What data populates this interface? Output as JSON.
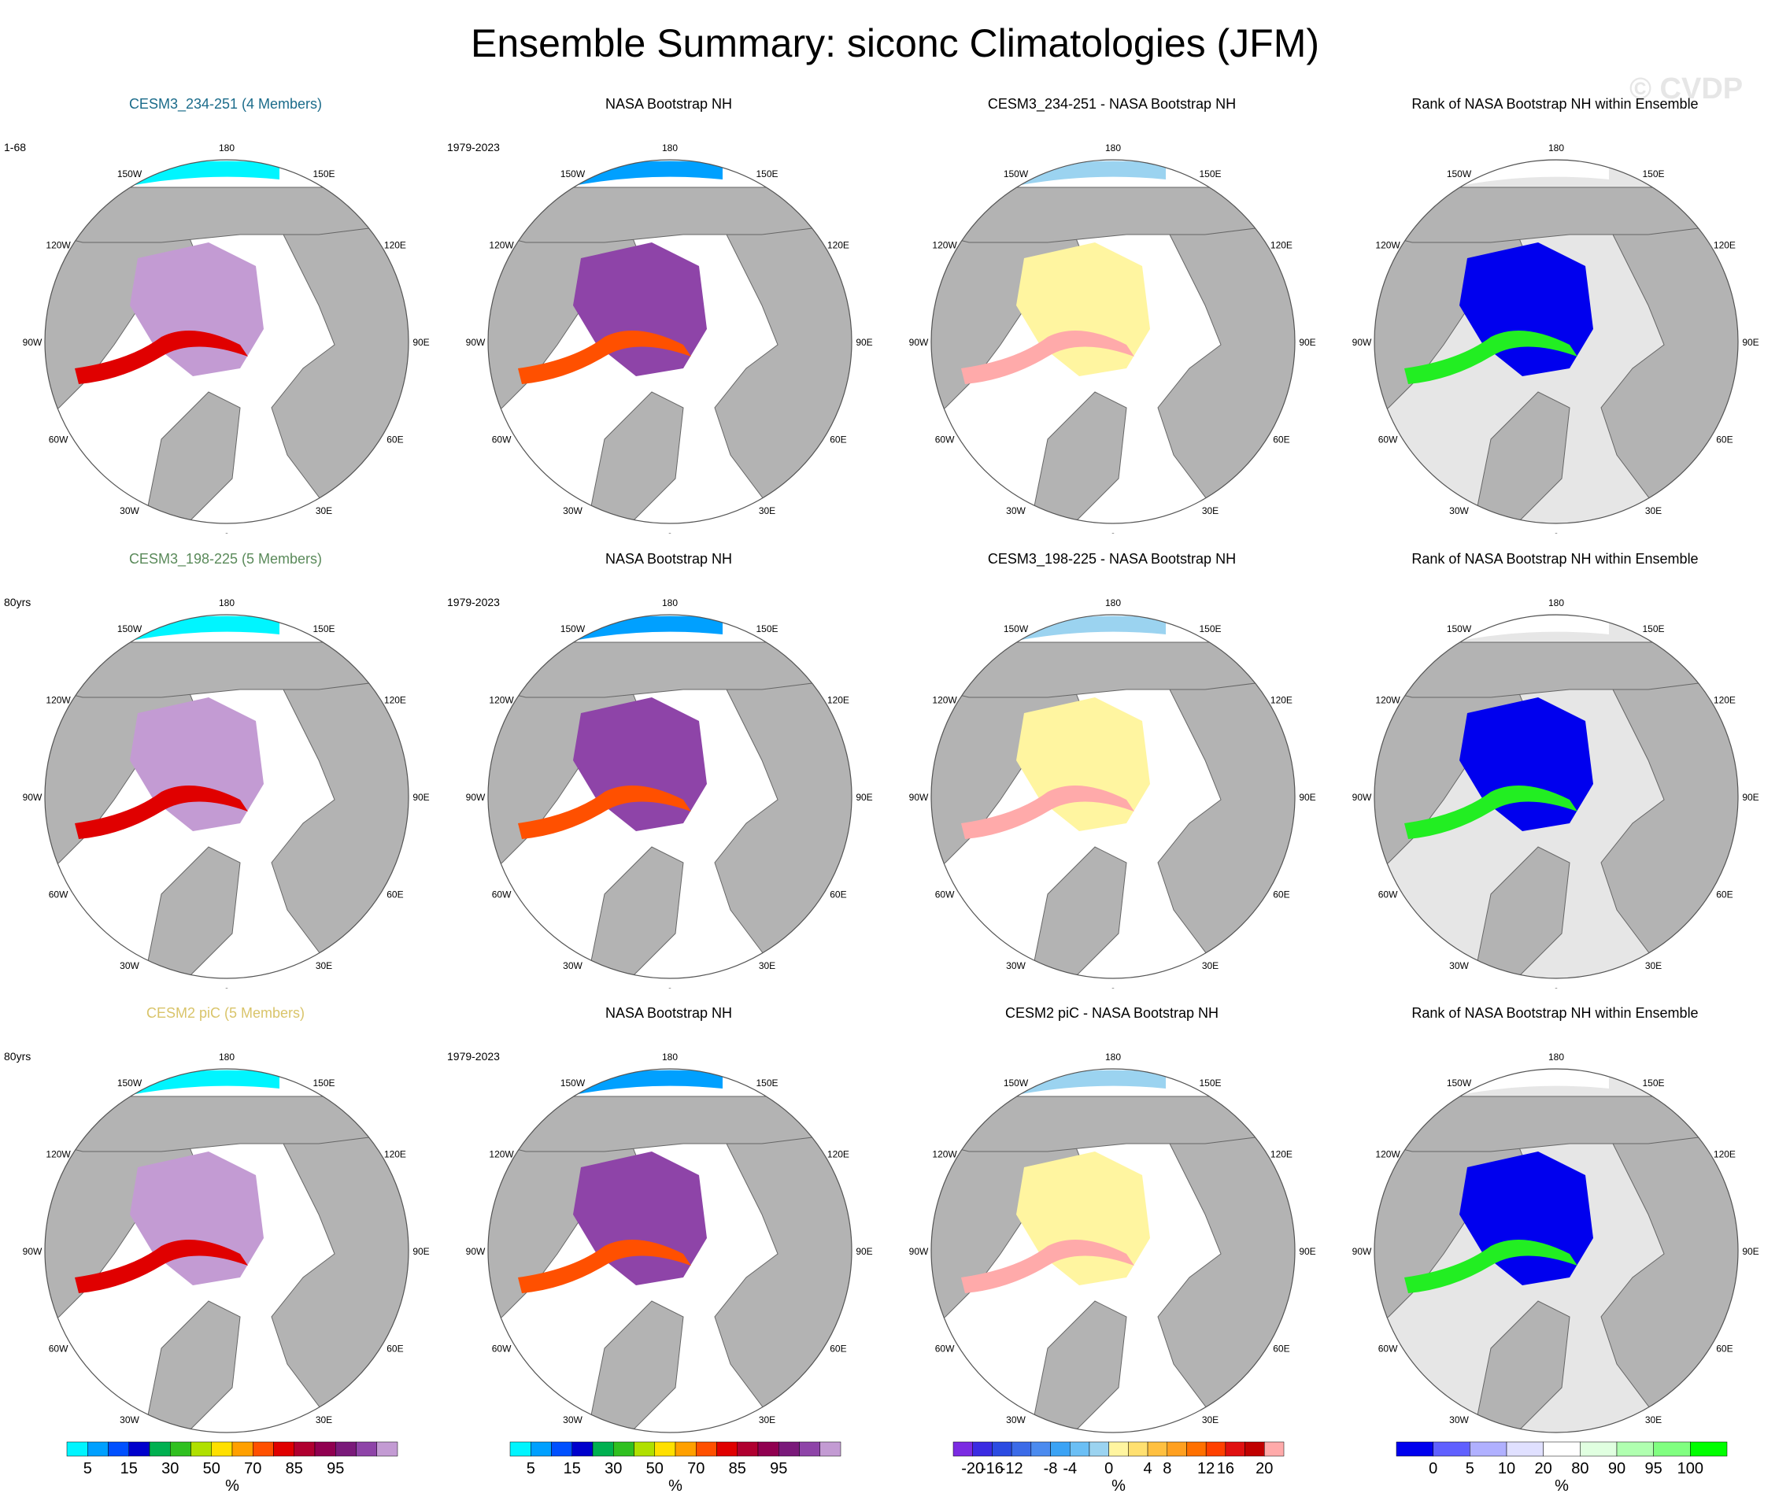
{
  "title": "Ensemble Summary: siconc Climatologies (JFM)",
  "watermark": "© CVDP",
  "colors": {
    "land": "#b3b3b3",
    "ocean": "#ffffff",
    "rank_background": "#e6e6e6",
    "rank_high": "#0000ee",
    "rank_low": "#22ee22",
    "row1_title": "#1a6b8a",
    "row2_title": "#5a8a5a",
    "row3_title": "#d9c46a"
  },
  "lon_labels": [
    "180",
    "150W",
    "150E",
    "120W",
    "120E",
    "90W",
    "90E",
    "60W",
    "60E",
    "30W",
    "30E",
    "0"
  ],
  "rows": [
    {
      "panels": [
        {
          "kind": "mean",
          "title": "CESM3_234-251 (4 Members)",
          "years": "1-68",
          "title_color_key": "row1_title"
        },
        {
          "kind": "obs",
          "title": "NASA Bootstrap NH",
          "years": "1979-2023"
        },
        {
          "kind": "diff",
          "title": "CESM3_234-251 - NASA Bootstrap NH",
          "years": ""
        },
        {
          "kind": "rank",
          "title": "Rank of NASA Bootstrap NH within Ensemble",
          "years": ""
        }
      ]
    },
    {
      "panels": [
        {
          "kind": "mean",
          "title": "CESM3_198-225 (5 Members)",
          "years": "80yrs",
          "title_color_key": "row2_title"
        },
        {
          "kind": "obs",
          "title": "NASA Bootstrap NH",
          "years": "1979-2023"
        },
        {
          "kind": "diff",
          "title": "CESM3_198-225 - NASA Bootstrap NH",
          "years": ""
        },
        {
          "kind": "rank",
          "title": "Rank of NASA Bootstrap NH within Ensemble",
          "years": ""
        }
      ]
    },
    {
      "panels": [
        {
          "kind": "mean",
          "title": "CESM2 piC (5 Members)",
          "years": "80yrs",
          "title_color_key": "row3_title"
        },
        {
          "kind": "obs",
          "title": "NASA Bootstrap NH",
          "years": "1979-2023"
        },
        {
          "kind": "diff",
          "title": "CESM2 piC - NASA Bootstrap NH",
          "years": ""
        },
        {
          "kind": "rank",
          "title": "Rank of NASA Bootstrap NH within Ensemble",
          "years": ""
        }
      ]
    }
  ],
  "colorbars": [
    {
      "unit": "%",
      "colors": [
        "#00f5ff",
        "#00a0ff",
        "#0050ff",
        "#0000cc",
        "#00b050",
        "#30c020",
        "#b0e000",
        "#ffe000",
        "#ffa000",
        "#ff5000",
        "#e00000",
        "#b00030",
        "#900050",
        "#7a1a7a",
        "#8e44a8",
        "#c39bd3"
      ],
      "labels": [
        {
          "text": "5",
          "pos": 1
        },
        {
          "text": "15",
          "pos": 3
        },
        {
          "text": "30",
          "pos": 5
        },
        {
          "text": "50",
          "pos": 7
        },
        {
          "text": "70",
          "pos": 9
        },
        {
          "text": "85",
          "pos": 11
        },
        {
          "text": "95",
          "pos": 13
        }
      ]
    },
    {
      "unit": "%",
      "colors": [
        "#00f5ff",
        "#00a0ff",
        "#0050ff",
        "#0000cc",
        "#00b050",
        "#30c020",
        "#b0e000",
        "#ffe000",
        "#ffa000",
        "#ff5000",
        "#e00000",
        "#b00030",
        "#900050",
        "#7a1a7a",
        "#8e44a8",
        "#c39bd3"
      ],
      "labels": [
        {
          "text": "5",
          "pos": 1
        },
        {
          "text": "15",
          "pos": 3
        },
        {
          "text": "30",
          "pos": 5
        },
        {
          "text": "50",
          "pos": 7
        },
        {
          "text": "70",
          "pos": 9
        },
        {
          "text": "85",
          "pos": 11
        },
        {
          "text": "95",
          "pos": 13
        }
      ]
    },
    {
      "unit": "%",
      "colors": [
        "#7b2be2",
        "#3b2be2",
        "#2b4be2",
        "#3b6be8",
        "#4b8bef",
        "#3ba3f5",
        "#6bbff5",
        "#9bd3f0",
        "#fff5a0",
        "#ffe070",
        "#ffc040",
        "#ffa020",
        "#ff7000",
        "#ff4000",
        "#e01010",
        "#c00000",
        "#ffaaaa"
      ],
      "labels": [
        {
          "text": "-20",
          "pos": 1
        },
        {
          "text": "-16",
          "pos": 2
        },
        {
          "text": "-12",
          "pos": 3
        },
        {
          "text": "-8",
          "pos": 5
        },
        {
          "text": "-4",
          "pos": 6
        },
        {
          "text": "0",
          "pos": 8
        },
        {
          "text": "4",
          "pos": 10
        },
        {
          "text": "8",
          "pos": 11
        },
        {
          "text": "12",
          "pos": 13
        },
        {
          "text": "16",
          "pos": 14
        },
        {
          "text": "20",
          "pos": 16
        }
      ]
    },
    {
      "unit": "%",
      "colors": [
        "#0000ee",
        "#6060ff",
        "#b0b0ff",
        "#e0e0ff",
        "#ffffff",
        "#e0ffe0",
        "#b0ffb0",
        "#80ff80",
        "#00ff00"
      ],
      "labels": [
        {
          "text": "0",
          "pos": 1
        },
        {
          "text": "5",
          "pos": 2
        },
        {
          "text": "10",
          "pos": 3
        },
        {
          "text": "20",
          "pos": 4
        },
        {
          "text": "80",
          "pos": 5
        },
        {
          "text": "90",
          "pos": 6
        },
        {
          "text": "95",
          "pos": 7
        },
        {
          "text": "100",
          "pos": 8
        }
      ]
    }
  ]
}
